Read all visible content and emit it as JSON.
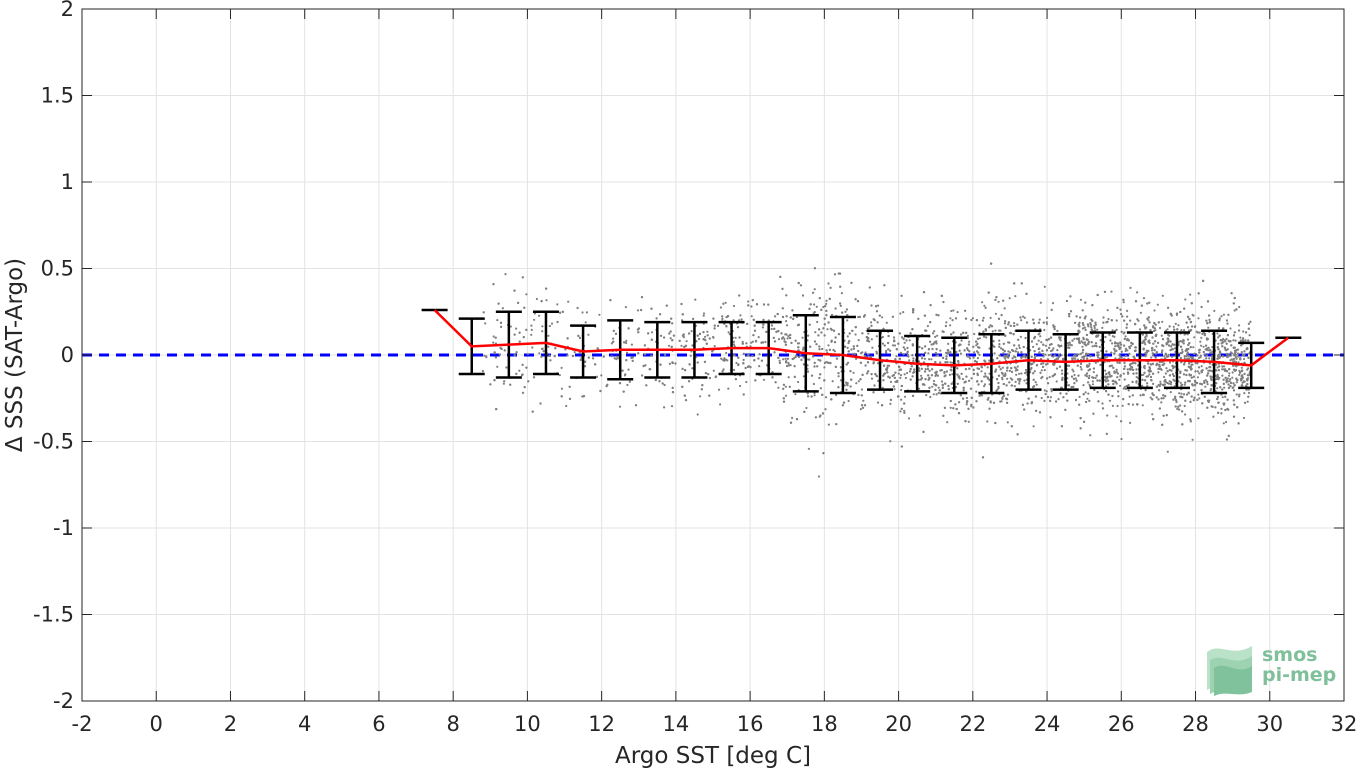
{
  "chart_data": {
    "type": "scatter",
    "xlabel": "Argo SST [deg C]",
    "ylabel": "Δ SSS (SAT-Argo)",
    "xlim": [
      -2,
      32
    ],
    "ylim": [
      -2,
      2
    ],
    "xticks": [
      -2,
      0,
      2,
      4,
      6,
      8,
      10,
      12,
      14,
      16,
      18,
      20,
      22,
      24,
      26,
      28,
      30,
      32
    ],
    "yticks": [
      -2,
      -1.5,
      -1,
      -0.5,
      0,
      0.5,
      1,
      1.5,
      2
    ],
    "grid": true,
    "zero_line": {
      "y": 0,
      "color": "#0000ff",
      "style": "dashed"
    },
    "scatter_color": "#808080",
    "mean_line_color": "#ff0000",
    "errorbar_color": "#000000",
    "scatter_range": {
      "x": [
        8.8,
        29.5
      ],
      "y_spread": "approx ±0.5 around 0"
    },
    "binned": {
      "x": [
        7.5,
        8.5,
        9.5,
        10.5,
        11.5,
        12.5,
        13.5,
        14.5,
        15.5,
        16.5,
        17.5,
        18.5,
        19.5,
        20.5,
        21.5,
        22.5,
        23.5,
        24.5,
        25.5,
        26.5,
        27.5,
        28.5,
        29.5,
        30.5
      ],
      "mean": [
        0.26,
        0.05,
        0.06,
        0.07,
        0.02,
        0.03,
        0.03,
        0.03,
        0.04,
        0.04,
        0.01,
        0.0,
        -0.03,
        -0.05,
        -0.06,
        -0.05,
        -0.03,
        -0.04,
        -0.03,
        -0.03,
        -0.03,
        -0.04,
        -0.06,
        0.1
      ],
      "std": [
        null,
        0.16,
        0.19,
        0.18,
        0.15,
        0.17,
        0.16,
        0.16,
        0.15,
        0.15,
        0.22,
        0.22,
        0.17,
        0.16,
        0.16,
        0.17,
        0.17,
        0.16,
        0.16,
        0.16,
        0.16,
        0.18,
        0.13,
        null
      ]
    }
  },
  "logo": {
    "line1": "smos",
    "line2": "pi-mep"
  }
}
